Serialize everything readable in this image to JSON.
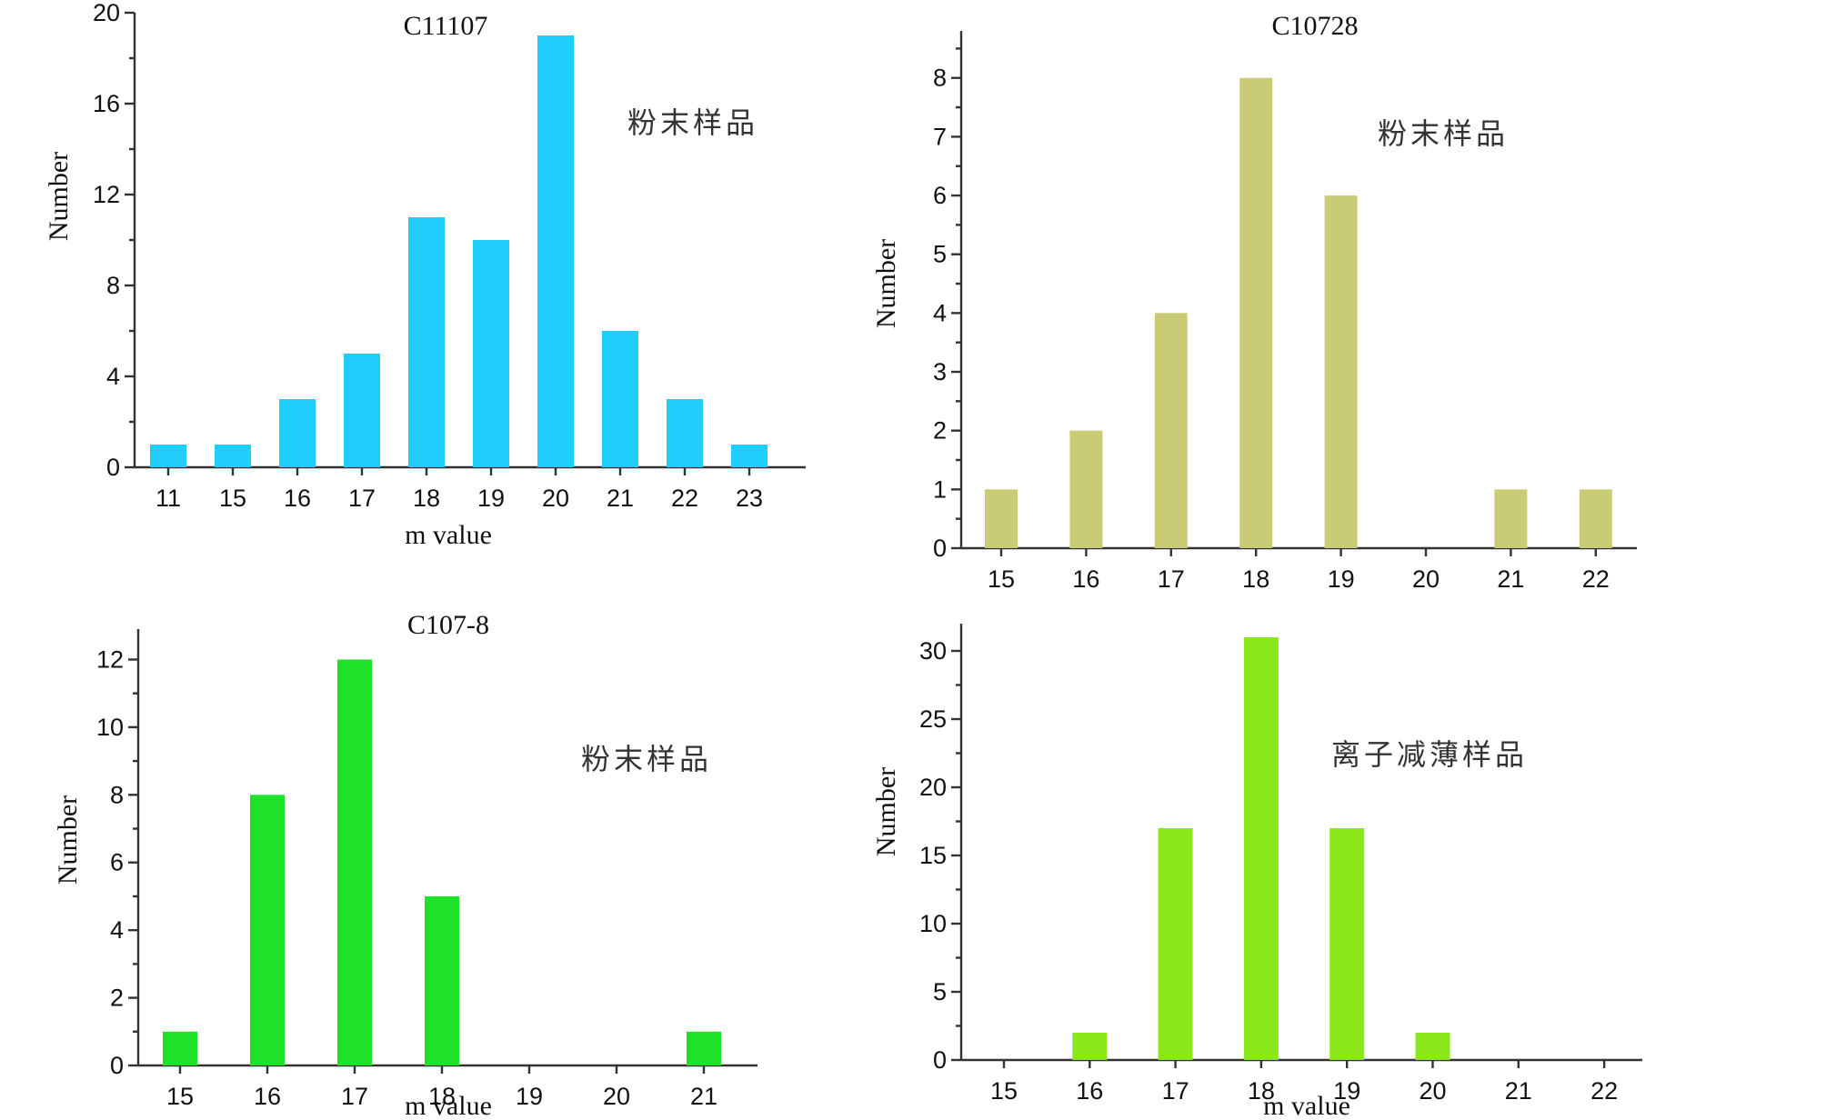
{
  "chart_data": [
    {
      "type": "bar",
      "title": "C11107",
      "annotation": "粉末样品",
      "xlabel": "m value",
      "ylabel": "Number",
      "categories": [
        "11",
        "15",
        "16",
        "17",
        "18",
        "19",
        "20",
        "21",
        "22",
        "23"
      ],
      "values": [
        1,
        1,
        3,
        5,
        11,
        10,
        19,
        6,
        3,
        1
      ],
      "ylim": [
        0,
        20
      ],
      "yticks": [
        "0",
        "4",
        "8",
        "12",
        "16",
        "20"
      ],
      "color": "#1fcdfa",
      "grid": false
    },
    {
      "type": "bar",
      "title": "C10728",
      "annotation": "粉末样品",
      "xlabel": "",
      "ylabel": "Number",
      "categories": [
        "15",
        "16",
        "17",
        "18",
        "19",
        "20",
        "21",
        "22"
      ],
      "values": [
        1,
        2,
        4,
        8,
        6,
        0,
        1,
        1
      ],
      "ylim": [
        0,
        8.8
      ],
      "yticks": [
        "0",
        "1",
        "2",
        "3",
        "4",
        "5",
        "6",
        "7",
        "8"
      ],
      "color": "#c9cc74",
      "grid": false
    },
    {
      "type": "bar",
      "title": "C107-8",
      "annotation": "粉末样品",
      "xlabel": "m value",
      "ylabel": "Number",
      "categories": [
        "15",
        "16",
        "17",
        "18",
        "19",
        "20",
        "21"
      ],
      "values": [
        1,
        8,
        12,
        5,
        0,
        0,
        1
      ],
      "ylim": [
        0,
        12.9
      ],
      "yticks": [
        "0",
        "2",
        "4",
        "6",
        "8",
        "10",
        "12"
      ],
      "color": "#1ee22a",
      "grid": false
    },
    {
      "type": "bar",
      "title": "",
      "annotation": "离子减薄样品",
      "xlabel": "m value",
      "ylabel": "Number",
      "categories": [
        "15",
        "16",
        "17",
        "18",
        "19",
        "20",
        "21",
        "22"
      ],
      "values": [
        0,
        2,
        17,
        31,
        17,
        2,
        0,
        0
      ],
      "ylim": [
        0,
        32
      ],
      "yticks": [
        "0",
        "5",
        "10",
        "15",
        "20",
        "25",
        "30"
      ],
      "color": "#8ae81a",
      "grid": false
    }
  ]
}
